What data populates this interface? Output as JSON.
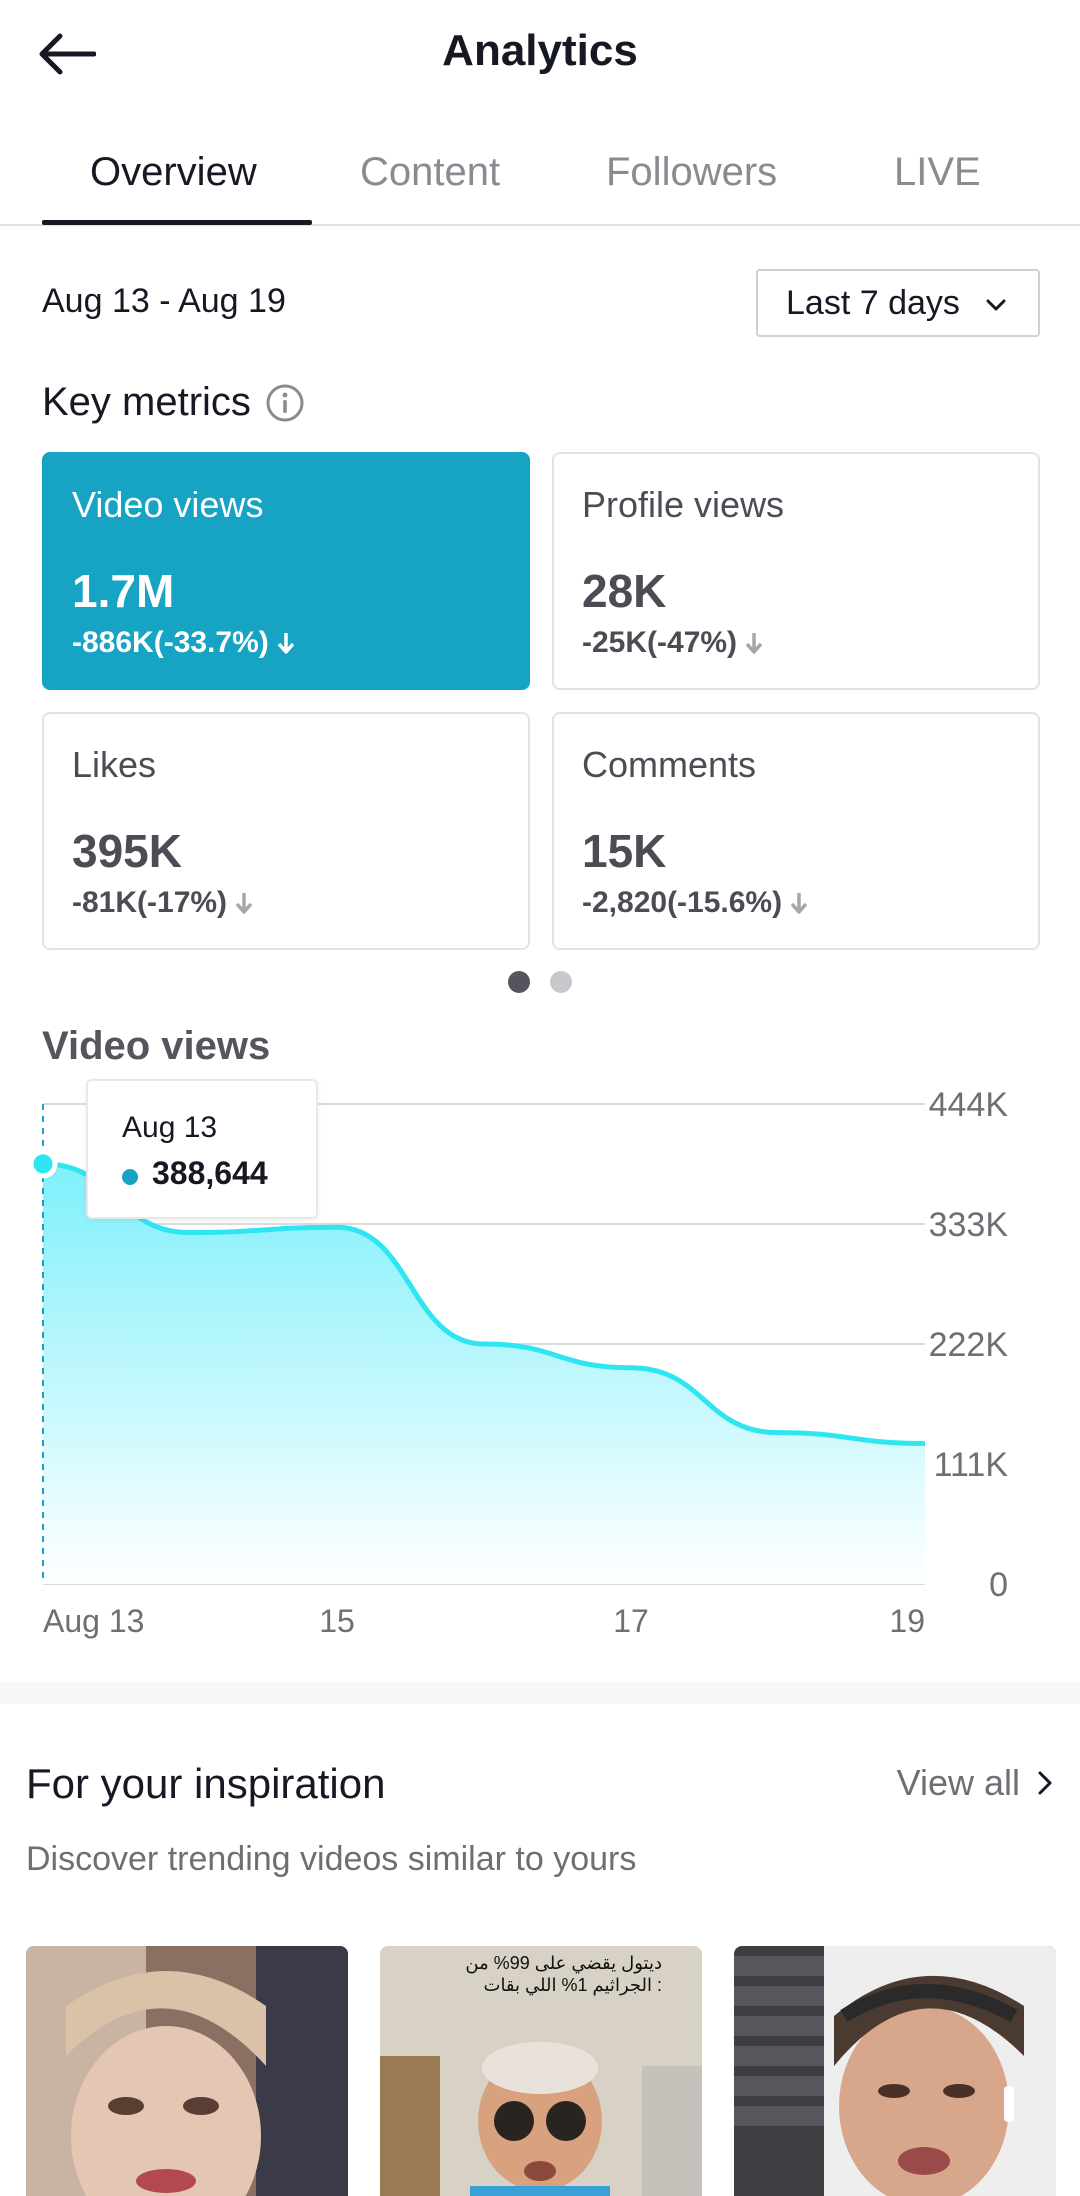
{
  "header": {
    "title": "Analytics"
  },
  "tabs": [
    {
      "label": "Overview",
      "active": true
    },
    {
      "label": "Content"
    },
    {
      "label": "Followers"
    },
    {
      "label": "LIVE"
    }
  ],
  "date_range": "Aug 13 - Aug 19",
  "range_select": {
    "value": "Last 7 days"
  },
  "key_metrics": {
    "title": "Key metrics",
    "cards": [
      {
        "label": "Video views",
        "value": "1.7M",
        "change": "-886K(-33.7%)",
        "active": true
      },
      {
        "label": "Profile views",
        "value": "28K",
        "change": "-25K(-47%)"
      },
      {
        "label": "Likes",
        "value": "395K",
        "change": "-81K(-17%)"
      },
      {
        "label": "Comments",
        "value": "15K",
        "change": "-2,820(-15.6%)"
      }
    ],
    "page_count": 2,
    "current_page": 1
  },
  "chart_title": "Video views",
  "tooltip": {
    "date": "Aug 13",
    "value": "388,644"
  },
  "chart_data": {
    "type": "area",
    "x": [
      "Aug 13",
      "Aug 14",
      "Aug 15",
      "Aug 16",
      "Aug 17",
      "Aug 18",
      "Aug 19"
    ],
    "x_tick_labels": [
      "Aug 13",
      "15",
      "17",
      "19"
    ],
    "series": [
      {
        "values": [
          388644,
          325000,
          330000,
          222000,
          200000,
          140000,
          130000
        ]
      }
    ],
    "y_ticks": [
      "444K",
      "333K",
      "222K",
      "111K",
      "0"
    ],
    "ylim": [
      0,
      444000
    ],
    "grid": true,
    "colors": {
      "line": "#2ee6f2",
      "fill_top": "#7ef0fb",
      "fill_bottom": "#ffffff",
      "marker": "#17a3c4"
    }
  },
  "inspiration": {
    "title": "For your inspiration",
    "view_all": "View all",
    "subtitle": "Discover trending videos similar to yours",
    "thumb_caption": "ديتول يقضي على 99% من الجراثيم 1% اللي بقات :"
  },
  "colors": {
    "accent": "#17a3c4",
    "text": "#161823",
    "muted": "#8a8b91"
  }
}
